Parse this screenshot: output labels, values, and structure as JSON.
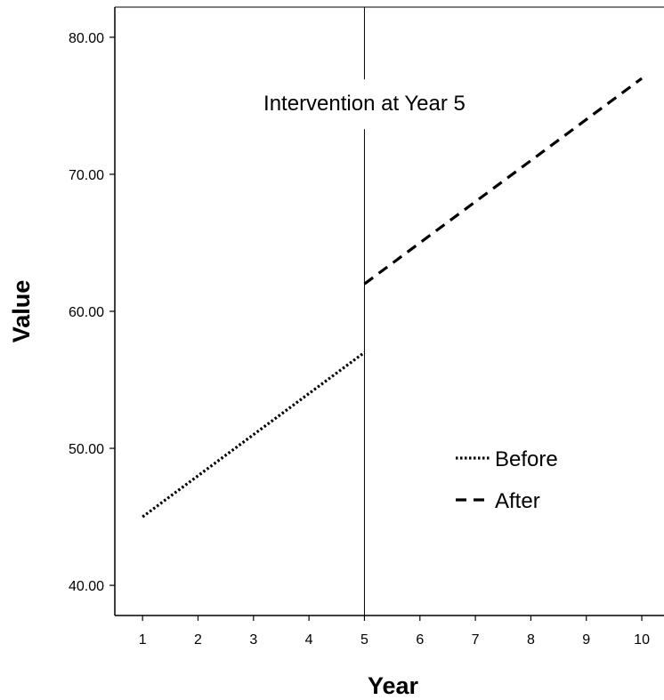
{
  "chart_data": {
    "type": "line",
    "title": "",
    "xlabel": "Year",
    "ylabel": "Value",
    "x_ticks": [
      1,
      2,
      3,
      4,
      5,
      6,
      7,
      8,
      9,
      10
    ],
    "x_tick_labels": [
      "1",
      "2",
      "3",
      "4",
      "5",
      "6",
      "7",
      "8",
      "9",
      "10"
    ],
    "y_ticks": [
      40,
      50,
      60,
      70,
      80
    ],
    "y_tick_labels": [
      "40.00",
      "50.00",
      "60.00",
      "70.00",
      "80.00"
    ],
    "xlim": [
      0.5,
      10.4
    ],
    "ylim": [
      37.8,
      82.2
    ],
    "grid": false,
    "legend_position": "lower-right",
    "series": [
      {
        "name": "Before",
        "style": "dotted",
        "color": "#000000",
        "x": [
          1,
          5
        ],
        "y": [
          45,
          57
        ]
      },
      {
        "name": "After",
        "style": "dashed",
        "color": "#000000",
        "x": [
          5,
          10
        ],
        "y": [
          62,
          77
        ]
      }
    ],
    "reference_lines": [
      {
        "axis": "x",
        "value": 5,
        "color": "#000000"
      }
    ],
    "annotations": [
      {
        "text": "Intervention at Year 5",
        "x": 5,
        "y": 75.5
      }
    ]
  }
}
